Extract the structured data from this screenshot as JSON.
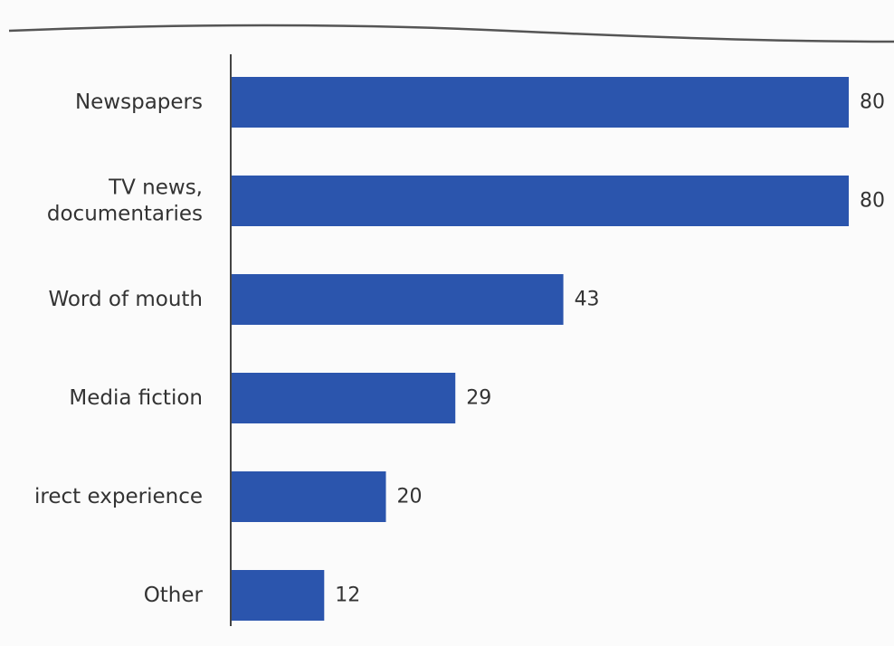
{
  "chart_data": {
    "type": "bar",
    "orientation": "horizontal",
    "categories": [
      "Newspapers",
      "TV news, documentaries",
      "Word of mouth",
      "Media fiction",
      "irect experience",
      "Other"
    ],
    "category_lines": [
      [
        "Newspapers"
      ],
      [
        "TV news,",
        "documentaries"
      ],
      [
        "Word of mouth"
      ],
      [
        "Media fiction"
      ],
      [
        "irect experience"
      ],
      [
        "Other"
      ]
    ],
    "values": [
      80,
      80,
      43,
      29,
      20,
      12
    ],
    "value_labels": [
      "80",
      "80",
      "43",
      "29",
      "20",
      "12"
    ],
    "xlim": [
      0,
      80
    ],
    "grid": false,
    "legend": "none",
    "bar_color": "#2b55ad",
    "text_color": "#333333"
  }
}
